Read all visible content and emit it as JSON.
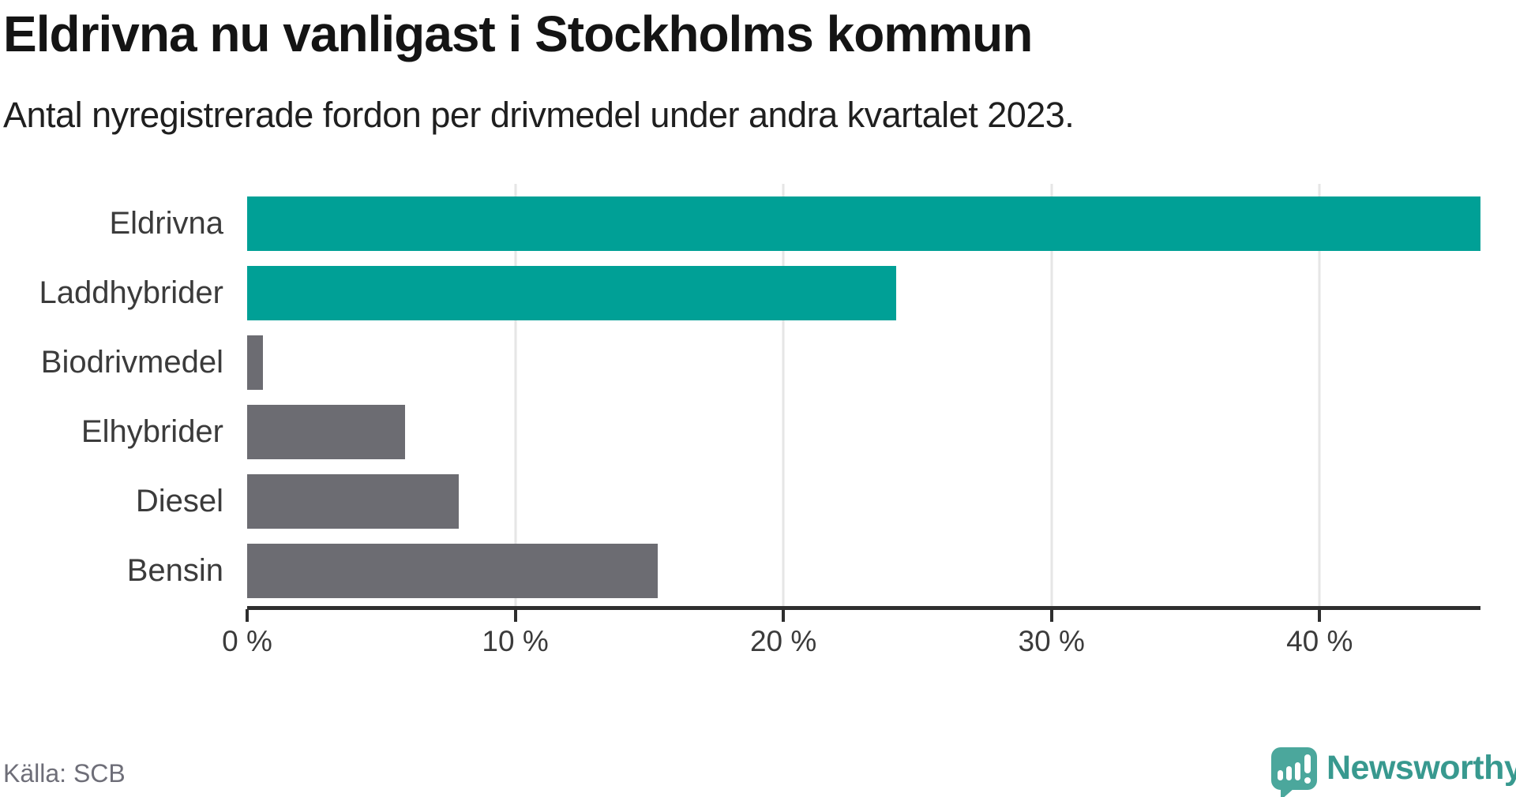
{
  "chart_data": {
    "type": "bar",
    "orientation": "horizontal",
    "title": "Eldrivna nu vanligast i Stockholms kommun",
    "subtitle": "Antal nyregistrerade fordon per drivmedel under andra kvartalet 2023.",
    "categories": [
      "Eldrivna",
      "Laddhybrider",
      "Biodrivmedel",
      "Elhybrider",
      "Diesel",
      "Bensin"
    ],
    "values": [
      46.0,
      24.2,
      0.6,
      5.9,
      7.9,
      15.3
    ],
    "unit": "%",
    "xlabel": "",
    "ylabel": "",
    "xlim": [
      0,
      46
    ],
    "x_ticks": [
      {
        "value": 0,
        "label": "0 %"
      },
      {
        "value": 10,
        "label": "10 %"
      },
      {
        "value": 20,
        "label": "20 %"
      },
      {
        "value": 30,
        "label": "30 %"
      },
      {
        "value": 40,
        "label": "40 %"
      }
    ],
    "gridline_values": [
      10,
      20,
      30,
      40
    ],
    "grid": true,
    "legend": false,
    "bar_colors": [
      "#00A096",
      "#00A096",
      "#6C6C72",
      "#6C6C72",
      "#6C6C72",
      "#6C6C72"
    ]
  },
  "footer": {
    "source": "Källa: SCB",
    "brand": "Newsworthy"
  },
  "icons": {
    "logo_icon": "newsworthy-speech-bubble-bar-chart-icon"
  },
  "colors": {
    "accent_teal": "#00A096",
    "bar_gray": "#6C6C72",
    "logo_icon_bg": "#4BA79C",
    "logo_text": "#38998F",
    "axis": "#2E2E2E",
    "gridline": "#E6E6E6",
    "title_text": "#141414",
    "label_text": "#3B3B3B",
    "source_text": "#6E6E78"
  }
}
